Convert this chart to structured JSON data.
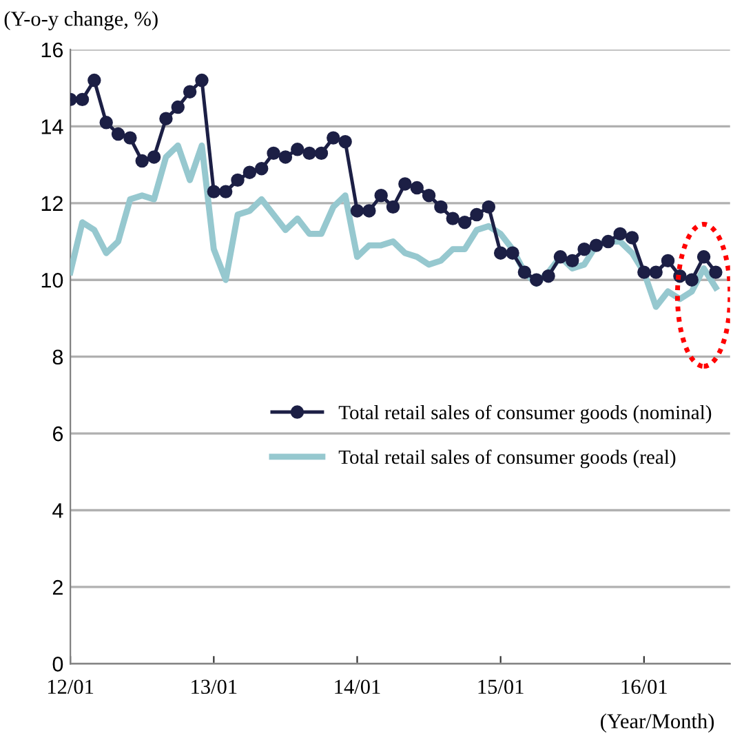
{
  "chart_data": {
    "type": "line",
    "ylabel": "(Y-o-y change, %)",
    "xlabel": "(Year/Month)",
    "categories": [
      "12/01",
      null,
      null,
      null,
      null,
      null,
      null,
      null,
      null,
      null,
      null,
      null,
      "13/01",
      null,
      null,
      null,
      null,
      null,
      null,
      null,
      null,
      null,
      null,
      null,
      "14/01",
      null,
      null,
      null,
      null,
      null,
      null,
      null,
      null,
      null,
      null,
      null,
      "15/01",
      null,
      null,
      null,
      null,
      null,
      null,
      null,
      null,
      null,
      null,
      null,
      "16/01",
      null,
      null,
      null,
      null,
      null,
      null
    ],
    "series": [
      {
        "name": "Total retail sales of consumer goods (nominal)",
        "color": "#1c1f45",
        "marker": "circle",
        "values": [
          14.7,
          14.7,
          15.2,
          14.1,
          13.8,
          13.7,
          13.1,
          13.2,
          14.2,
          14.5,
          14.9,
          15.2,
          12.3,
          12.3,
          12.6,
          12.8,
          12.9,
          13.3,
          13.2,
          13.4,
          13.3,
          13.3,
          13.7,
          13.6,
          11.8,
          11.8,
          12.2,
          11.9,
          12.5,
          12.4,
          12.2,
          11.9,
          11.6,
          11.5,
          11.7,
          11.9,
          10.7,
          10.7,
          10.2,
          10.0,
          10.1,
          10.6,
          10.5,
          10.8,
          10.9,
          11.0,
          11.2,
          11.1,
          10.2,
          10.2,
          10.5,
          10.1,
          10.0,
          10.6,
          10.2
        ]
      },
      {
        "name": "Total retail sales of consumer goods (real)",
        "color": "#96c8cf",
        "marker": "none",
        "values": [
          10.2,
          11.5,
          11.3,
          10.7,
          11.0,
          12.1,
          12.2,
          12.1,
          13.2,
          13.5,
          12.6,
          13.5,
          10.8,
          10.0,
          11.7,
          11.8,
          12.1,
          11.7,
          11.3,
          11.6,
          11.2,
          11.2,
          11.9,
          12.2,
          10.6,
          10.9,
          10.9,
          11.0,
          10.7,
          10.6,
          10.4,
          10.5,
          10.8,
          10.8,
          11.3,
          11.4,
          11.2,
          10.8,
          10.2,
          9.9,
          10.2,
          10.6,
          10.3,
          10.4,
          10.9,
          11.0,
          11.0,
          10.7,
          10.2,
          9.3,
          9.7,
          9.5,
          9.7,
          10.3,
          9.8
        ]
      }
    ],
    "ylim": [
      0,
      16
    ],
    "yticks": [
      0,
      2,
      4,
      6,
      8,
      10,
      12,
      14,
      16
    ],
    "grid": "y",
    "legend": "right",
    "line_style": "solid"
  }
}
